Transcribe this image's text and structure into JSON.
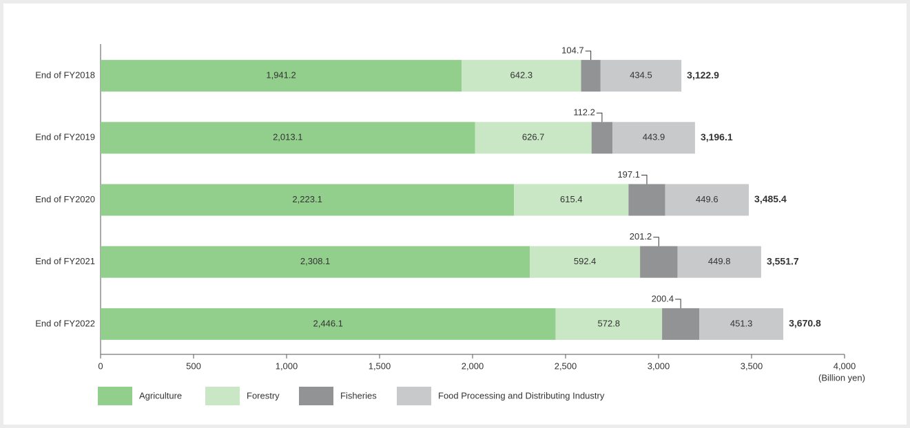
{
  "chart_data": {
    "type": "stacked-bar-horizontal",
    "categories": [
      "End of FY2018",
      "End of FY2019",
      "End of FY2020",
      "End of FY2021",
      "End of FY2022"
    ],
    "series": [
      {
        "name": "Agriculture",
        "color": "#93cf8c",
        "values": [
          1941.2,
          2013.1,
          2223.1,
          2308.1,
          2446.1
        ],
        "value_labels": [
          "1,941.2",
          "2,013.1",
          "2,223.1",
          "2,308.1",
          "2,446.1"
        ]
      },
      {
        "name": "Forestry",
        "color": "#c9e6c5",
        "values": [
          642.3,
          626.7,
          615.4,
          592.4,
          572.8
        ]
      },
      {
        "name": "Fisheries",
        "color": "#929395",
        "values": [
          104.7,
          112.2,
          197.1,
          201.2,
          200.4
        ]
      },
      {
        "name": "Food Processing and Distributing Industry",
        "color": "#c8c9cb",
        "values": [
          434.5,
          443.9,
          449.6,
          449.8,
          451.3
        ]
      }
    ],
    "total_values": [
      3122.9,
      3196.1,
      3485.4,
      3551.7,
      3670.8
    ],
    "total_labels": [
      "3,122.9",
      "3,196.1",
      "3,485.4",
      "3,551.7",
      "3,670.8"
    ],
    "xlim": [
      0,
      4000
    ],
    "xticks": [
      0,
      500,
      {
        "value": 1000,
        "label": "1,000"
      },
      {
        "value": 1500,
        "label": "1,500"
      },
      {
        "value": 2000,
        "label": "2,000"
      },
      {
        "value": 2500,
        "label": "2,500"
      },
      {
        "value": 3000,
        "label": "3,000"
      },
      {
        "value": 3500,
        "label": "3,500"
      },
      {
        "value": 4000,
        "label": "4,000"
      }
    ],
    "x_axis_label": "(Billion yen)",
    "outside_label_series": 2
  }
}
